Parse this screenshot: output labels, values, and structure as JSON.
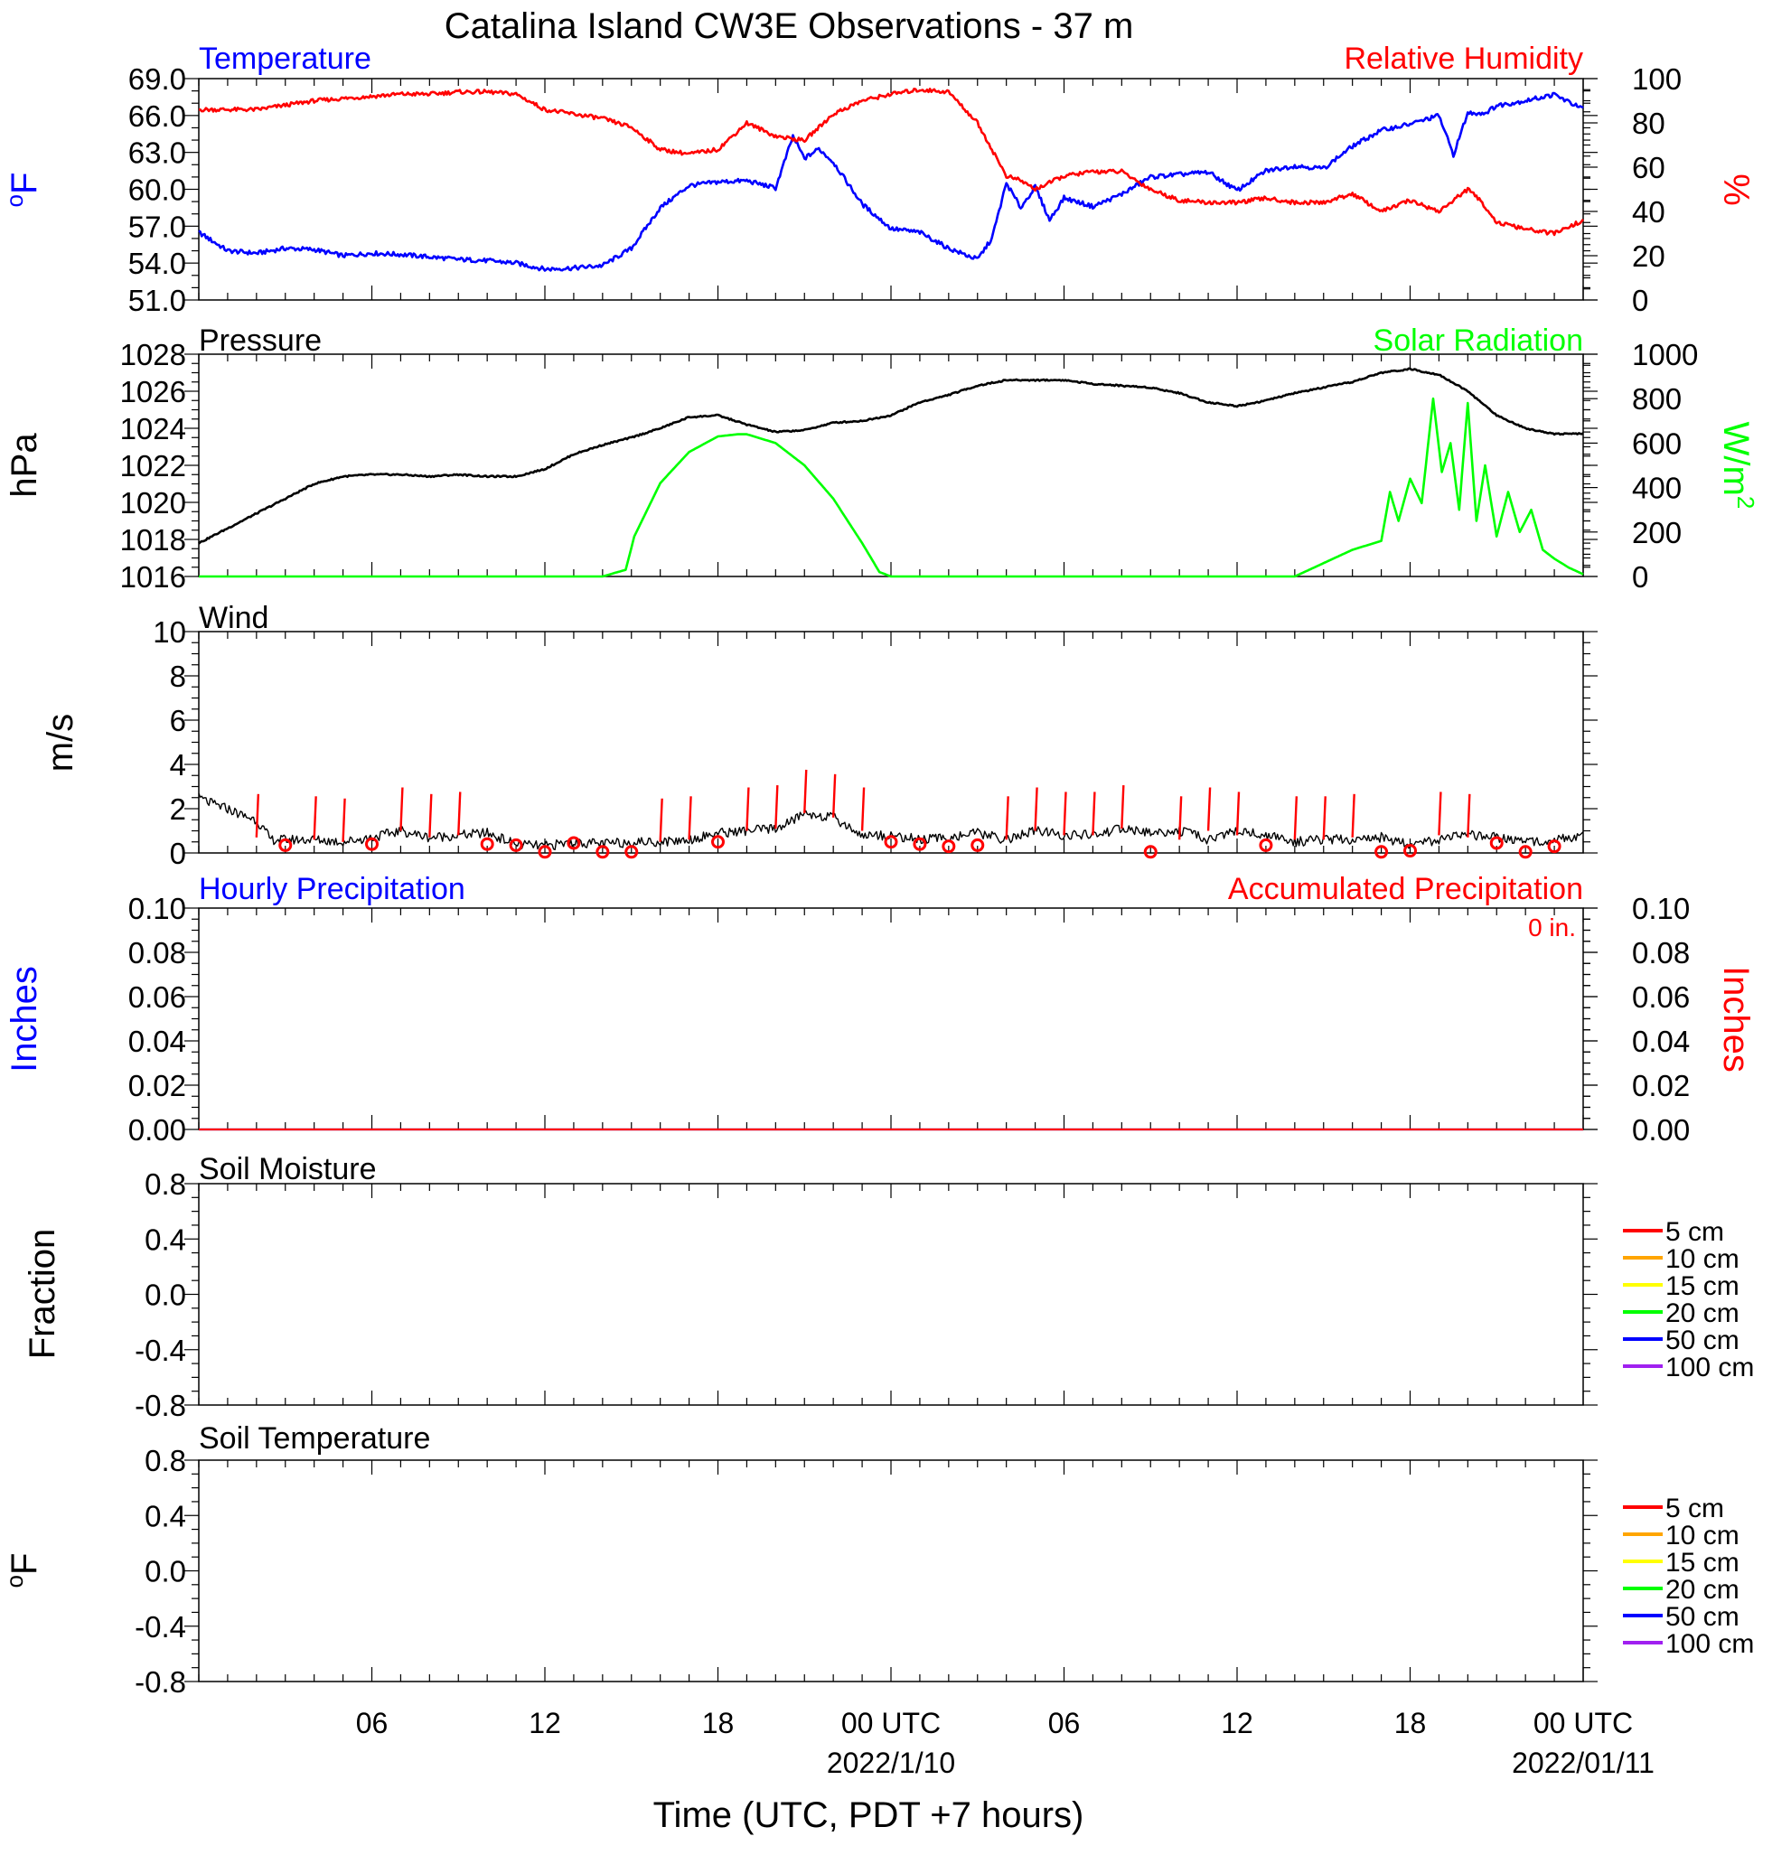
{
  "title": "Catalina Island CW3E Observations - 37 m",
  "colors": {
    "temperature": "#0000ff",
    "humidity": "#ff0000",
    "pressure": "#000000",
    "solar": "#00ff00",
    "wind": "#000000",
    "barb": "#ff0000",
    "hourly_precip": "#0000ff",
    "accum_precip": "#ff0000"
  },
  "x_axis": {
    "label": "Time (UTC, PDT +7 hours)",
    "tick_labels": [
      "06",
      "12",
      "18",
      "00 UTC",
      "06",
      "12",
      "18",
      "00 UTC"
    ],
    "date_labels": [
      "2022/1/10",
      "2022/01/11"
    ]
  },
  "panels": {
    "temp": {
      "left_title": "Temperature",
      "right_title": "Relative Humidity",
      "left_unit": "°F",
      "left_unit_sup": "o",
      "left_unit_base": "F",
      "right_unit": "%",
      "left_ticks": [
        "69.0",
        "66.0",
        "63.0",
        "60.0",
        "57.0",
        "54.0",
        "51.0"
      ],
      "right_ticks": [
        "100",
        "80",
        "60",
        "40",
        "20",
        "0"
      ]
    },
    "pressure": {
      "left_title": "Pressure",
      "right_title": "Solar Radiation",
      "left_unit": "hPa",
      "right_unit_base": "W/m",
      "right_unit_sup": "2",
      "left_ticks": [
        "1028",
        "1026",
        "1024",
        "1022",
        "1020",
        "1018",
        "1016"
      ],
      "right_ticks": [
        "1000",
        "800",
        "600",
        "400",
        "200",
        "0"
      ]
    },
    "wind": {
      "left_title": "Wind",
      "left_unit": "m/s",
      "left_ticks": [
        "10",
        "8",
        "6",
        "4",
        "2",
        "0"
      ]
    },
    "precip": {
      "left_title": "Hourly Precipitation",
      "right_title": "Accumulated Precipitation",
      "accum_total": "0 in.",
      "left_unit": "Inches",
      "right_unit": "Inches",
      "left_ticks": [
        "0.10",
        "0.08",
        "0.06",
        "0.04",
        "0.02",
        "0.00"
      ],
      "right_ticks": [
        "0.10",
        "0.08",
        "0.06",
        "0.04",
        "0.02",
        "0.00"
      ]
    },
    "soil_moisture": {
      "left_title": "Soil Moisture",
      "left_unit": "Fraction",
      "left_ticks": [
        "0.8",
        "0.4",
        "0.0",
        "-0.4",
        "-0.8"
      ],
      "legend": [
        {
          "label": "5 cm",
          "color": "#ff0000"
        },
        {
          "label": "10 cm",
          "color": "#ffa500"
        },
        {
          "label": "15 cm",
          "color": "#ffff00"
        },
        {
          "label": "20 cm",
          "color": "#00ff00"
        },
        {
          "label": "50 cm",
          "color": "#0000ff"
        },
        {
          "label": "100 cm",
          "color": "#a020f0"
        }
      ]
    },
    "soil_temp": {
      "left_title": "Soil Temperature",
      "left_unit_sup": "o",
      "left_unit_base": "F",
      "left_ticks": [
        "0.8",
        "0.4",
        "0.0",
        "-0.4",
        "-0.8"
      ],
      "legend": [
        {
          "label": "5 cm",
          "color": "#ff0000"
        },
        {
          "label": "10 cm",
          "color": "#ffa500"
        },
        {
          "label": "15 cm",
          "color": "#ffff00"
        },
        {
          "label": "20 cm",
          "color": "#00ff00"
        },
        {
          "label": "50 cm",
          "color": "#0000ff"
        },
        {
          "label": "100 cm",
          "color": "#a020f0"
        }
      ]
    }
  },
  "chart_data": [
    {
      "type": "line",
      "title": "Temperature",
      "x_unit": "hours since 2022-01-09 00 UTC",
      "xlim": [
        1,
        49
      ],
      "ylabel": "°F",
      "ylim": [
        51,
        69
      ],
      "series": [
        {
          "name": "Temperature",
          "axis": "left",
          "x": [
            1,
            2,
            3,
            4,
            5,
            6,
            7,
            8,
            9,
            10,
            11,
            12,
            13,
            14,
            15,
            16,
            17,
            18,
            19,
            20,
            21,
            21.6,
            22,
            22.5,
            23,
            24,
            25,
            26,
            27,
            28,
            28.5,
            29,
            29.5,
            30,
            30.5,
            31,
            32,
            33,
            34,
            35,
            36,
            37,
            38,
            39,
            40,
            41,
            42,
            43,
            44,
            44.5,
            45,
            45.6,
            46,
            47,
            48,
            49
          ],
          "y": [
            56.5,
            55,
            54.8,
            55.2,
            55.1,
            54.6,
            54.8,
            54.7,
            54.5,
            54.3,
            54.2,
            54,
            53.5,
            53.6,
            53.8,
            55.2,
            58.5,
            60.3,
            60.6,
            60.7,
            60.1,
            64.3,
            62.5,
            63.3,
            62.2,
            58.8,
            56.8,
            56.5,
            55.2,
            54.3,
            56,
            60.5,
            58.5,
            60.2,
            57.5,
            59.3,
            58.6,
            59.6,
            61,
            61.2,
            61.4,
            59.9,
            61.5,
            61.9,
            61.7,
            63.5,
            64.8,
            65.3,
            66,
            62.8,
            66.2,
            66.2,
            66.8,
            67.2,
            67.7,
            66.5
          ]
        },
        {
          "name": "Relative Humidity",
          "axis": "right",
          "ylim": [
            0,
            100
          ],
          "x": [
            1,
            2,
            3,
            4,
            5,
            6,
            7,
            8,
            9,
            10,
            11,
            12,
            13,
            14,
            15,
            16,
            17,
            18,
            19,
            20,
            21,
            22,
            23,
            24,
            25,
            26,
            27,
            28,
            29,
            29.5,
            30,
            31,
            32,
            33,
            34,
            35,
            36,
            37,
            38,
            39,
            40,
            41,
            42,
            43,
            44,
            45,
            45.5,
            46,
            47,
            48,
            49
          ],
          "y": [
            86,
            86,
            86,
            88,
            90,
            91,
            92,
            93,
            93,
            94,
            94,
            93,
            86,
            84,
            82,
            78,
            68,
            66,
            68,
            80,
            74,
            72,
            84,
            90,
            93,
            95,
            94,
            80,
            56,
            54,
            50,
            56,
            58,
            58,
            50,
            45,
            44,
            44,
            46,
            44,
            44,
            48,
            40,
            45,
            40,
            50,
            44,
            35,
            32,
            30,
            36
          ]
        }
      ]
    },
    {
      "type": "line",
      "title": "Pressure",
      "x_unit": "hours since 2022-01-09 00 UTC",
      "xlim": [
        1,
        49
      ],
      "ylabel": "hPa",
      "ylim": [
        1016,
        1028
      ],
      "series": [
        {
          "name": "Pressure",
          "axis": "left",
          "x": [
            1,
            2,
            3,
            4,
            5,
            6,
            7,
            8,
            9,
            10,
            11,
            12,
            13,
            14,
            15,
            16,
            17,
            18,
            19,
            20,
            21,
            22,
            23,
            24,
            25,
            26,
            27,
            28,
            29,
            30,
            31,
            32,
            33,
            34,
            35,
            36,
            37,
            38,
            39,
            40,
            41,
            42,
            43,
            44,
            45,
            46,
            47,
            48,
            49
          ],
          "y": [
            1017.8,
            1018.6,
            1019.4,
            1020.2,
            1021.0,
            1021.4,
            1021.5,
            1021.5,
            1021.4,
            1021.5,
            1021.4,
            1021.4,
            1021.8,
            1022.6,
            1023.1,
            1023.5,
            1024.0,
            1024.6,
            1024.7,
            1024.2,
            1023.8,
            1023.9,
            1024.3,
            1024.4,
            1024.7,
            1025.4,
            1025.8,
            1026.3,
            1026.6,
            1026.6,
            1026.6,
            1026.4,
            1026.3,
            1026.2,
            1025.9,
            1025.4,
            1025.2,
            1025.5,
            1025.9,
            1026.2,
            1026.5,
            1027.0,
            1027.2,
            1026.9,
            1026.0,
            1024.7,
            1024.0,
            1023.7,
            1023.7
          ]
        },
        {
          "name": "Solar Radiation",
          "axis": "right",
          "ylim": [
            0,
            1000
          ],
          "x": [
            1,
            14,
            15,
            15.8,
            16.1,
            17,
            18,
            19,
            19.7,
            20,
            21,
            22,
            23,
            24,
            24.6,
            25,
            39,
            40,
            41,
            42,
            42.3,
            42.6,
            43,
            43.4,
            43.8,
            44.1,
            44.4,
            44.7,
            45,
            45.3,
            45.6,
            46,
            46.4,
            46.8,
            47.2,
            47.6,
            48,
            48.5,
            49
          ],
          "y": [
            0,
            0,
            0,
            30,
            180,
            420,
            560,
            630,
            640,
            640,
            600,
            500,
            350,
            150,
            20,
            0,
            0,
            60,
            120,
            160,
            380,
            250,
            440,
            330,
            800,
            470,
            600,
            300,
            780,
            250,
            500,
            180,
            380,
            200,
            300,
            120,
            80,
            40,
            10
          ]
        }
      ]
    },
    {
      "type": "line",
      "title": "Wind",
      "x_unit": "hours since 2022-01-09 00 UTC",
      "xlim": [
        1,
        49
      ],
      "ylabel": "m/s",
      "ylim": [
        0,
        10
      ],
      "series": [
        {
          "name": "Wind speed",
          "x": [
            1,
            1.5,
            2,
            2.5,
            3,
            3.5,
            4,
            5,
            6,
            7,
            8,
            9,
            10,
            11,
            12,
            13,
            14,
            15,
            16,
            17,
            18,
            19,
            20,
            21,
            21.5,
            22,
            23,
            24,
            25,
            26,
            27,
            28,
            29,
            30,
            31,
            32,
            33,
            34,
            35,
            36,
            37,
            38,
            39,
            40,
            41,
            42,
            43,
            44,
            45,
            46,
            47,
            48,
            49
          ],
          "y": [
            2.5,
            2.2,
            2.0,
            1.7,
            1.5,
            0.6,
            0.6,
            0.6,
            0.5,
            0.7,
            1.0,
            0.7,
            0.8,
            0.9,
            0.4,
            0.3,
            0.5,
            0.4,
            0.5,
            0.5,
            0.6,
            0.9,
            1.0,
            1.1,
            1.4,
            1.8,
            1.6,
            0.8,
            0.8,
            0.6,
            0.7,
            0.9,
            0.6,
            1.0,
            0.8,
            0.8,
            1.1,
            0.9,
            1.0,
            0.6,
            1.0,
            0.8,
            0.5,
            0.6,
            0.6,
            0.7,
            0.4,
            0.6,
            0.8,
            0.7,
            0.5,
            0.6,
            0.8
          ]
        },
        {
          "name": "Wind barbs (calm circles)",
          "x": [
            4,
            7,
            11,
            12,
            13,
            14,
            15,
            16,
            19,
            25,
            26,
            27,
            28,
            34,
            38,
            42,
            43,
            46,
            47,
            48
          ],
          "y": [
            0.35,
            0.4,
            0.4,
            0.35,
            0.05,
            0.45,
            0.05,
            0.05,
            0.5,
            0.5,
            0.4,
            0.3,
            0.35,
            0.05,
            0.35,
            0.05,
            0.1,
            0.45,
            0.05,
            0.3
          ]
        },
        {
          "name": "Wind barbs (staffs)",
          "x": [
            3,
            5,
            6,
            8,
            9,
            10,
            17,
            18,
            20,
            21,
            22,
            23,
            24,
            29,
            30,
            31,
            32,
            33,
            35,
            36,
            37,
            39,
            40,
            41,
            44,
            45
          ],
          "y": [
            0.7,
            0.6,
            0.5,
            1.0,
            0.7,
            0.8,
            0.5,
            0.6,
            1.0,
            1.1,
            1.8,
            1.6,
            1.0,
            0.6,
            1.0,
            0.8,
            0.8,
            1.1,
            0.6,
            1.0,
            0.8,
            0.6,
            0.6,
            0.7,
            0.8,
            0.7
          ]
        }
      ]
    },
    {
      "type": "line",
      "title": "Hourly Precipitation",
      "x_unit": "hours since 2022-01-09 00 UTC",
      "xlim": [
        1,
        49
      ],
      "ylabel": "Inches",
      "ylim": [
        0,
        0.1
      ],
      "series": [
        {
          "name": "Hourly Precipitation",
          "axis": "left",
          "x": [
            1,
            49
          ],
          "y": [
            0,
            0
          ]
        },
        {
          "name": "Accumulated Precipitation",
          "axis": "right",
          "x": [
            1,
            49
          ],
          "y": [
            0,
            0
          ]
        }
      ]
    },
    {
      "type": "line",
      "title": "Soil Moisture",
      "ylabel": "Fraction",
      "ylim": [
        -1,
        1
      ],
      "series": []
    },
    {
      "type": "line",
      "title": "Soil Temperature",
      "ylabel": "°F",
      "ylim": [
        -1,
        1
      ],
      "series": []
    }
  ]
}
